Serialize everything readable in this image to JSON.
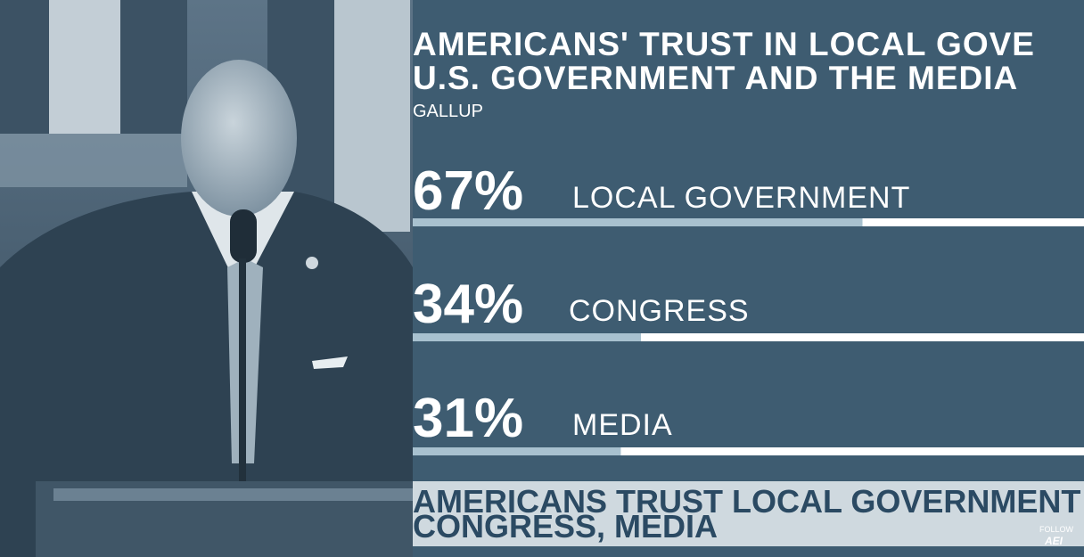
{
  "chart_data": {
    "type": "hbar",
    "title": [
      "AMERICANS' TRUST IN LOCAL GOVE",
      "U.S. GOVERNMENT AND THE MEDIA"
    ],
    "subtitle": "GALLUP",
    "categories": [
      "LOCAL GOVERNMENT",
      "CONGRESS",
      "MEDIA"
    ],
    "values": [
      67,
      34,
      31
    ],
    "value_labels": [
      "67%",
      "34%",
      "31%"
    ],
    "xlim": [
      0,
      100
    ],
    "color": "#a8c1cf",
    "track_color": "#ffffff"
  },
  "caption": [
    "AMERICANS TRUST LOCAL GOVERNMENT MO",
    "CONGRESS, MEDIA"
  ],
  "watermark": {
    "follow": "FOLLOW",
    "brand": "AEI"
  }
}
